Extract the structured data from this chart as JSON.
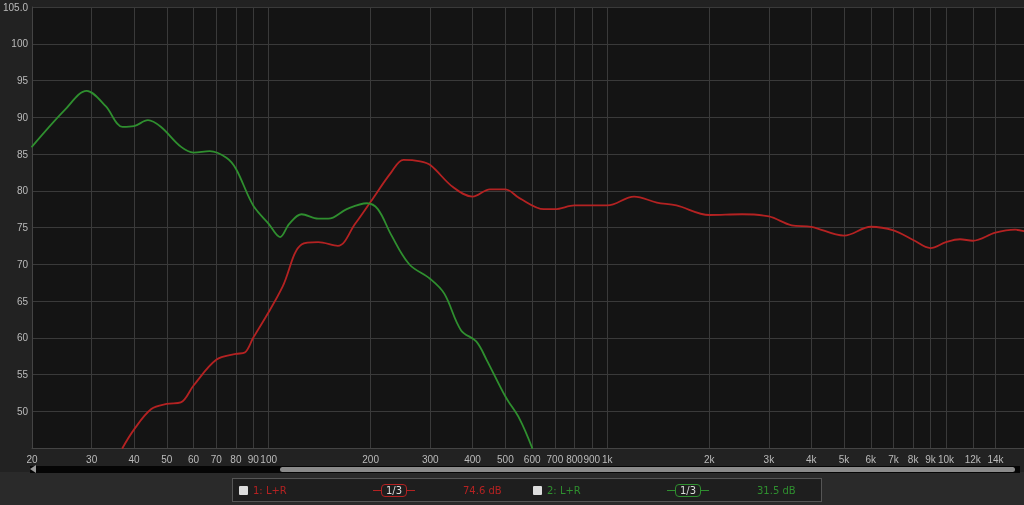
{
  "chart_data": {
    "type": "line",
    "marker": "none",
    "line_style": "solid",
    "grid": true,
    "legend": "bottom",
    "log": "x",
    "xlim": [
      20,
      17000
    ],
    "ylim": [
      45,
      105
    ],
    "xticks": [
      20,
      30,
      40,
      50,
      60,
      70,
      80,
      90,
      100,
      200,
      300,
      400,
      500,
      600,
      700,
      800,
      900,
      {
        "value": 1000,
        "label": "1k"
      },
      {
        "value": 2000,
        "label": "2k"
      },
      {
        "value": 3000,
        "label": "3k"
      },
      {
        "value": 4000,
        "label": "4k"
      },
      {
        "value": 5000,
        "label": "5k"
      },
      {
        "value": 6000,
        "label": "6k"
      },
      {
        "value": 7000,
        "label": "7k"
      },
      {
        "value": 8000,
        "label": "8k"
      },
      {
        "value": 9000,
        "label": "9k"
      },
      {
        "value": 10000,
        "label": "10k"
      },
      {
        "value": 12000,
        "label": "12k"
      },
      {
        "value": 14000,
        "label": "14k"
      }
    ],
    "yticks": [
      50,
      55,
      60,
      65,
      70,
      75,
      80,
      85,
      90,
      95,
      100,
      {
        "value": 105,
        "label": "105.0"
      }
    ],
    "annotations": [
      "1/3",
      "74.6 dB",
      "1/3",
      "31.5 dB"
    ],
    "series": [
      {
        "name": "1: L+R",
        "color": "#b42222",
        "x": [
          37,
          40,
          45,
          50,
          55,
          60,
          70,
          80,
          85,
          90,
          100,
          110,
          125,
          140,
          160,
          180,
          200,
          230,
          250,
          280,
          300,
          350,
          400,
          450,
          500,
          550,
          650,
          700,
          800,
          900,
          1000,
          1200,
          1400,
          1600,
          2000,
          2500,
          3000,
          3500,
          4000,
          5000,
          6000,
          7000,
          8000,
          9000,
          10000,
          11000,
          12000,
          14000,
          16000,
          17000
        ],
        "values": [
          45,
          47.5,
          50.3,
          51,
          51.2,
          53.5,
          57,
          57.8,
          58,
          60,
          63.5,
          67,
          72.7,
          73,
          72.5,
          75.5,
          78.5,
          82.5,
          84.2,
          84,
          83.5,
          80.5,
          79.2,
          80.2,
          80.2,
          79,
          77.5,
          77.5,
          78,
          78,
          78,
          79.2,
          78.4,
          78,
          76.7,
          76.8,
          76.5,
          75.3,
          75.1,
          73.9,
          75.1,
          74.6,
          73.3,
          72.2,
          73,
          73.4,
          73.2,
          74.3,
          74.7,
          74.5
        ]
      },
      {
        "name": "2: L+R",
        "color": "#2f8f2f",
        "x": [
          20,
          25,
          29,
          33,
          37,
          40,
          44,
          48,
          55,
          60,
          67,
          75,
          80,
          90,
          100,
          108,
          115,
          125,
          140,
          150,
          170,
          195,
          210,
          230,
          260,
          300,
          330,
          370,
          410,
          440,
          500,
          550,
          600
        ],
        "values": [
          86,
          91,
          93.6,
          91.5,
          88.7,
          88.8,
          89.6,
          88.7,
          86,
          85.2,
          85.4,
          84.5,
          83,
          78,
          75.5,
          73.7,
          75.5,
          76.8,
          76.2,
          76.2,
          77.5,
          78.3,
          77.5,
          74,
          70,
          68,
          66,
          61,
          59.5,
          57,
          52,
          49,
          45
        ]
      }
    ]
  }
}
